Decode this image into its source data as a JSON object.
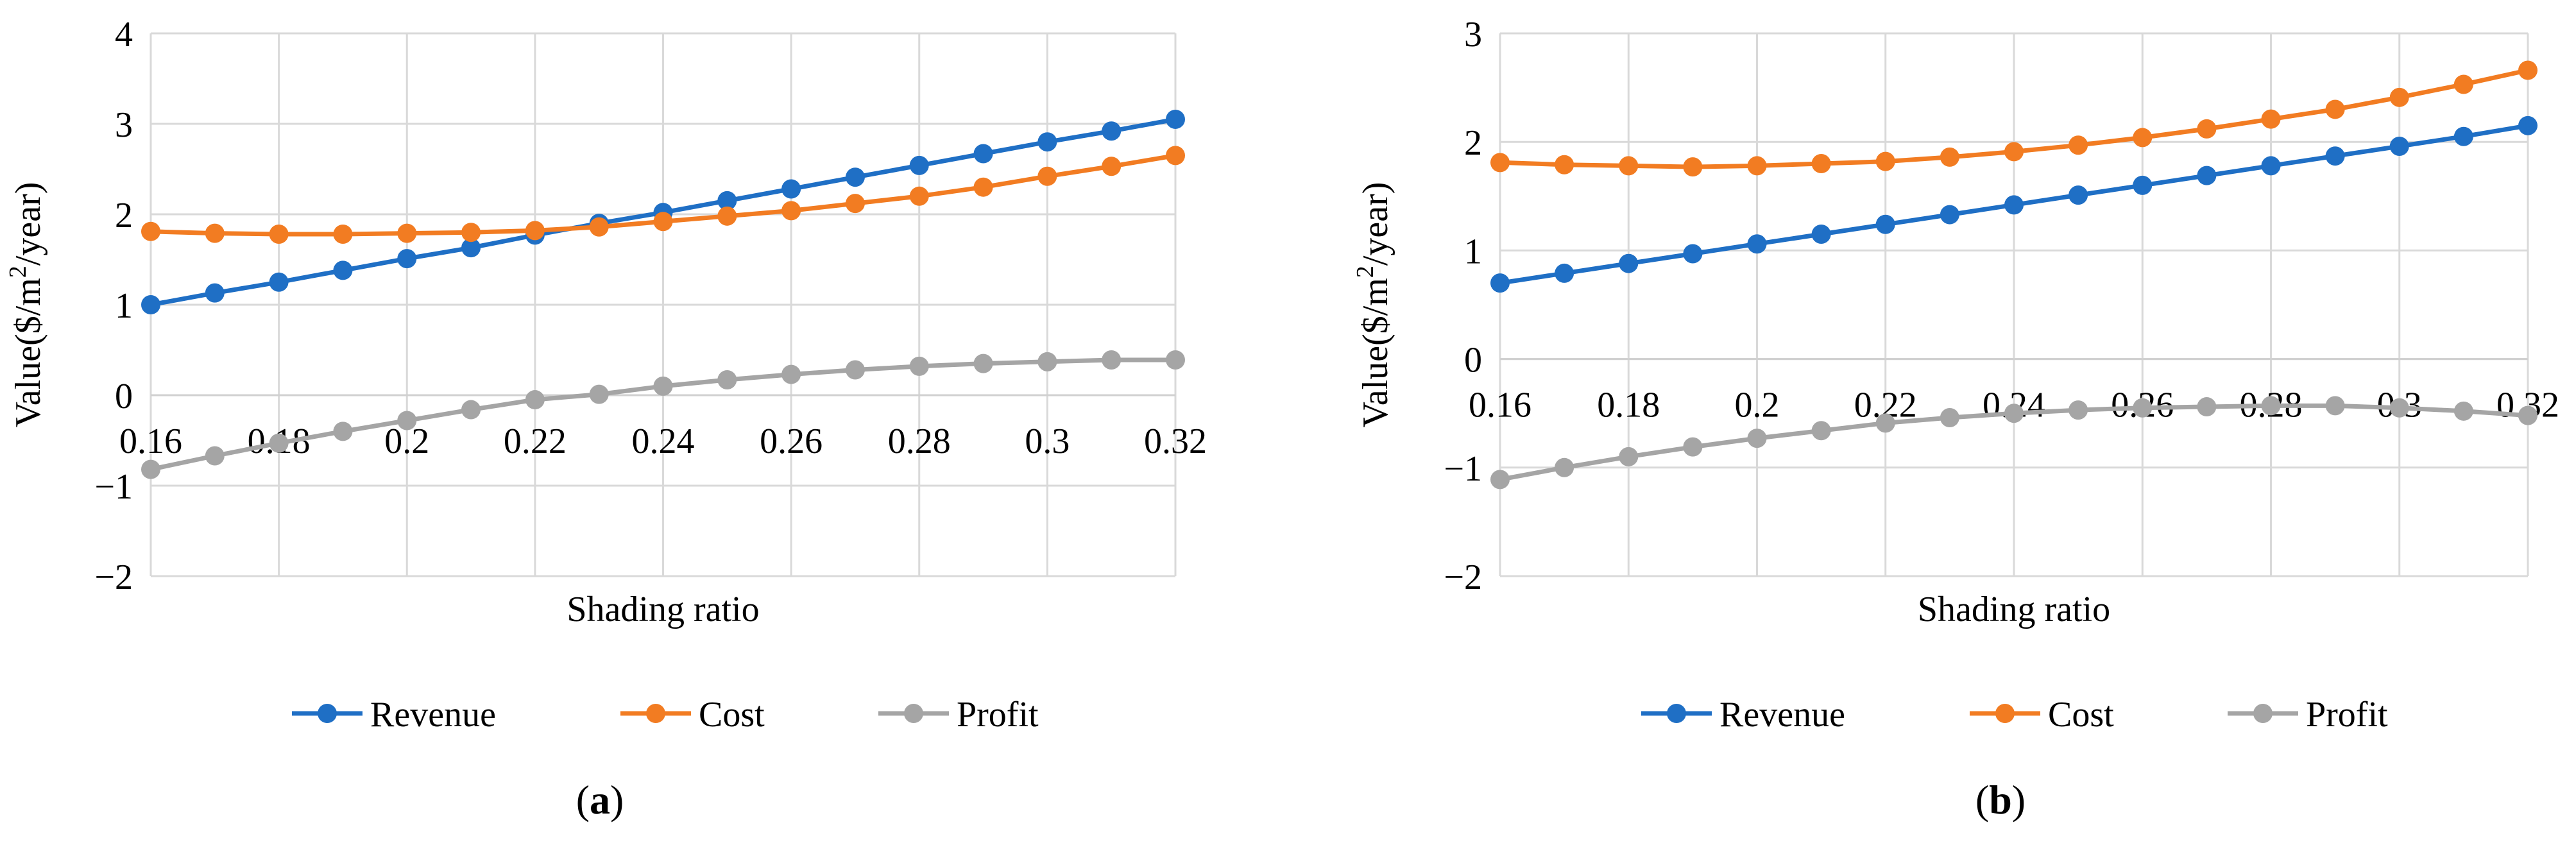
{
  "chart_data": [
    {
      "type": "line",
      "panel_label_open": "(",
      "panel_label_letter": "a",
      "panel_label_close": ")",
      "xlabel": "Shading ratio",
      "ylabel_prefix": "Value($/m",
      "ylabel_sup": "2",
      "ylabel_suffix": "/year)",
      "x_ticks": [
        "0.16",
        "0.18",
        "0.2",
        "0.22",
        "0.24",
        "0.26",
        "0.28",
        "0.3",
        "0.32"
      ],
      "y_ticks": [
        "−2",
        "−1",
        "0",
        "1",
        "2",
        "3",
        "4"
      ],
      "xlim": [
        0.16,
        0.32
      ],
      "ylim": [
        -2,
        4
      ],
      "x": [
        0.16,
        0.17,
        0.18,
        0.19,
        0.2,
        0.21,
        0.22,
        0.23,
        0.24,
        0.25,
        0.26,
        0.27,
        0.28,
        0.29,
        0.3,
        0.31,
        0.32
      ],
      "grid": "vertical",
      "legend_position": "bottom",
      "series": [
        {
          "name": "Revenue",
          "color": "#1f6fc5",
          "values": [
            1.0,
            1.13,
            1.25,
            1.38,
            1.51,
            1.63,
            1.77,
            1.9,
            2.02,
            2.15,
            2.28,
            2.41,
            2.54,
            2.67,
            2.8,
            2.92,
            3.05
          ]
        },
        {
          "name": "Cost",
          "color": "#f27c22",
          "values": [
            1.81,
            1.79,
            1.78,
            1.78,
            1.79,
            1.8,
            1.82,
            1.86,
            1.92,
            1.98,
            2.04,
            2.12,
            2.2,
            2.3,
            2.42,
            2.53,
            2.65
          ]
        },
        {
          "name": "Profit",
          "color": "#a5a5a5",
          "values": [
            -0.82,
            -0.67,
            -0.53,
            -0.4,
            -0.28,
            -0.16,
            -0.05,
            0.01,
            0.1,
            0.17,
            0.23,
            0.28,
            0.32,
            0.35,
            0.37,
            0.39,
            0.39
          ]
        }
      ]
    },
    {
      "type": "line",
      "panel_label_open": "(",
      "panel_label_letter": "b",
      "panel_label_close": ")",
      "xlabel": "Shading ratio",
      "ylabel_prefix": "Value($/m",
      "ylabel_sup": "2",
      "ylabel_suffix": "/year)",
      "x_ticks": [
        "0.16",
        "0.18",
        "0.2",
        "0.22",
        "0.24",
        "0.26",
        "0.28",
        "0.3",
        "0.32"
      ],
      "y_ticks": [
        "−2",
        "−1",
        "0",
        "1",
        "2",
        "3"
      ],
      "xlim": [
        0.16,
        0.32
      ],
      "ylim": [
        -2,
        3
      ],
      "x": [
        0.16,
        0.17,
        0.18,
        0.19,
        0.2,
        0.21,
        0.22,
        0.23,
        0.24,
        0.25,
        0.26,
        0.27,
        0.28,
        0.29,
        0.3,
        0.31,
        0.32
      ],
      "grid": "vertical",
      "legend_position": "bottom",
      "series": [
        {
          "name": "Revenue",
          "color": "#1f6fc5",
          "values": [
            0.7,
            0.79,
            0.88,
            0.97,
            1.06,
            1.15,
            1.24,
            1.33,
            1.42,
            1.51,
            1.6,
            1.69,
            1.78,
            1.87,
            1.96,
            2.05,
            2.15
          ]
        },
        {
          "name": "Cost",
          "color": "#f27c22",
          "values": [
            1.81,
            1.79,
            1.78,
            1.77,
            1.78,
            1.8,
            1.82,
            1.86,
            1.91,
            1.97,
            2.04,
            2.12,
            2.21,
            2.3,
            2.41,
            2.53,
            2.66
          ]
        },
        {
          "name": "Profit",
          "color": "#a5a5a5",
          "values": [
            -1.11,
            -1.0,
            -0.9,
            -0.81,
            -0.73,
            -0.66,
            -0.59,
            -0.54,
            -0.5,
            -0.47,
            -0.45,
            -0.44,
            -0.43,
            -0.43,
            -0.45,
            -0.48,
            -0.52
          ]
        }
      ]
    }
  ]
}
